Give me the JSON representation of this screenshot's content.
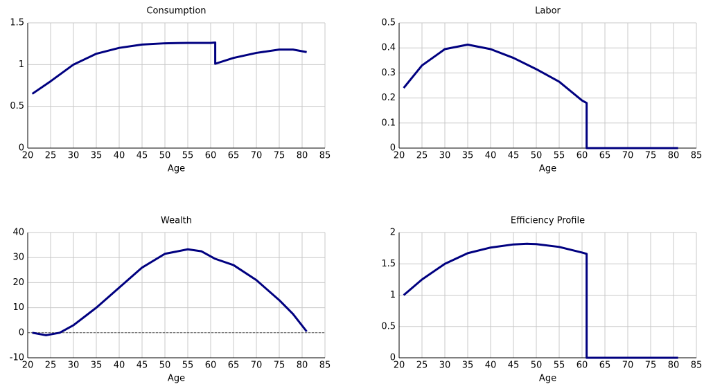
{
  "chart_data": [
    {
      "type": "line",
      "title": "Consumption",
      "xlabel": "Age",
      "color": "#000080",
      "grid": true,
      "x": [
        21,
        25,
        30,
        35,
        40,
        45,
        50,
        55,
        60,
        61,
        61,
        65,
        70,
        75,
        78,
        81
      ],
      "values": [
        0.65,
        0.8,
        1.0,
        1.13,
        1.2,
        1.24,
        1.255,
        1.26,
        1.26,
        1.265,
        1.01,
        1.08,
        1.14,
        1.18,
        1.18,
        1.15
      ],
      "xlim": [
        20,
        85
      ],
      "xticks": [
        20,
        25,
        30,
        35,
        40,
        45,
        50,
        55,
        60,
        65,
        70,
        75,
        80,
        85
      ],
      "ylim": [
        0,
        1.5
      ],
      "yticks": [
        0,
        0.5,
        1,
        1.5
      ]
    },
    {
      "type": "line",
      "title": "Labor",
      "xlabel": "Age",
      "color": "#000080",
      "grid": true,
      "x": [
        21,
        25,
        30,
        35,
        40,
        45,
        50,
        55,
        60,
        61,
        61,
        65,
        70,
        75,
        81
      ],
      "values": [
        0.24,
        0.33,
        0.395,
        0.413,
        0.395,
        0.36,
        0.315,
        0.265,
        0.19,
        0.18,
        0,
        0,
        0,
        0,
        0
      ],
      "xlim": [
        20,
        85
      ],
      "xticks": [
        20,
        25,
        30,
        35,
        40,
        45,
        50,
        55,
        60,
        65,
        70,
        75,
        80,
        85
      ],
      "ylim": [
        0,
        0.5
      ],
      "yticks": [
        0,
        0.1,
        0.2,
        0.3,
        0.4,
        0.5
      ]
    },
    {
      "type": "line",
      "title": "Wealth",
      "xlabel": "Age",
      "color": "#000080",
      "grid": true,
      "reference_line": 0,
      "x": [
        21,
        24,
        27,
        30,
        35,
        40,
        45,
        50,
        55,
        58,
        61,
        65,
        70,
        75,
        78,
        81
      ],
      "values": [
        0,
        -1,
        0,
        3,
        10,
        18,
        26,
        31.5,
        33.3,
        32.5,
        29.5,
        27,
        21,
        13,
        7.5,
        0.5
      ],
      "xlim": [
        20,
        85
      ],
      "xticks": [
        20,
        25,
        30,
        35,
        40,
        45,
        50,
        55,
        60,
        65,
        70,
        75,
        80,
        85
      ],
      "ylim": [
        -10,
        40
      ],
      "yticks": [
        -10,
        0,
        10,
        20,
        30,
        40
      ]
    },
    {
      "type": "line",
      "title": "Efficiency Profile",
      "xlabel": "Age",
      "color": "#000080",
      "grid": true,
      "x": [
        21,
        25,
        30,
        35,
        40,
        45,
        48,
        50,
        55,
        60,
        61,
        61,
        65,
        70,
        75,
        81
      ],
      "values": [
        1.0,
        1.25,
        1.5,
        1.67,
        1.76,
        1.81,
        1.82,
        1.815,
        1.77,
        1.68,
        1.66,
        0,
        0,
        0,
        0,
        0
      ],
      "xlim": [
        20,
        85
      ],
      "xticks": [
        20,
        25,
        30,
        35,
        40,
        45,
        50,
        55,
        60,
        65,
        70,
        75,
        80,
        85
      ],
      "ylim": [
        0,
        2
      ],
      "yticks": [
        0,
        0.5,
        1,
        1.5,
        2
      ]
    }
  ]
}
